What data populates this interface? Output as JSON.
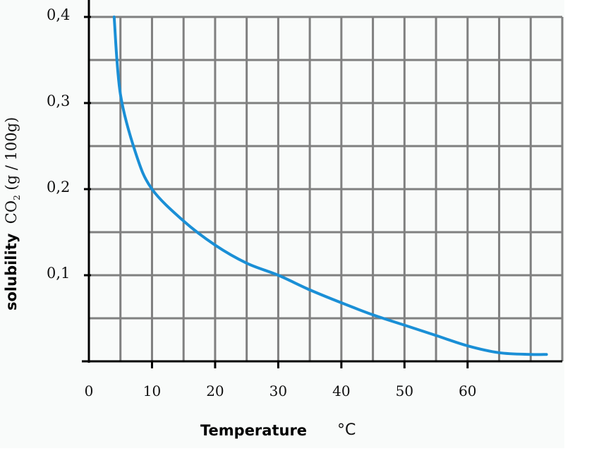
{
  "chart_data": {
    "type": "line",
    "title": "",
    "xlabel": "Temperature",
    "xunit": "°C",
    "ylabel_bold": "solubility",
    "ylabel_species": "CO",
    "ylabel_sub": "2",
    "ylabel_unit": "(g / 100g)",
    "xlim": [
      0,
      75
    ],
    "ylim": [
      0,
      0.4
    ],
    "grid": true,
    "x_ticks": [
      "0",
      "10",
      "20",
      "30",
      "40",
      "50",
      "60"
    ],
    "y_ticks": [
      "0,4",
      "0,3",
      "0,2",
      "0,1"
    ],
    "series": [
      {
        "name": "CO2 solubility",
        "color": "#1a8fd6",
        "x": [
          4,
          5,
          7.5,
          10,
          15,
          20,
          25,
          30,
          35,
          40,
          45,
          50,
          55,
          60,
          65,
          70,
          72.5
        ],
        "values": [
          0.4,
          0.31,
          0.24,
          0.2,
          0.163,
          0.135,
          0.114,
          0.1,
          0.083,
          0.068,
          0.054,
          0.042,
          0.03,
          0.018,
          0.01,
          0.008,
          0.008
        ]
      }
    ]
  }
}
